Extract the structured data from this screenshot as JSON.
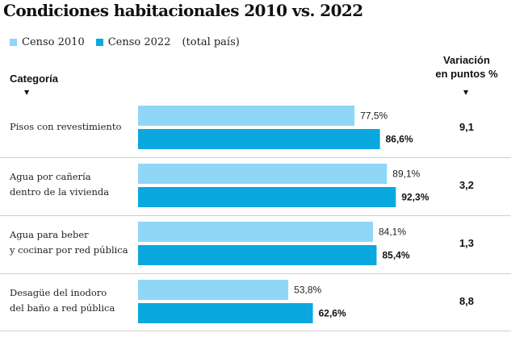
{
  "title": "Condiciones habitacionales 2010 vs. 2022",
  "legend": {
    "series_2010": "Censo 2010",
    "series_2022": "Censo 2022",
    "note": "(total país)"
  },
  "headers": {
    "category": "Categoría",
    "variation_line1": "Variación",
    "variation_line2": "en puntos %",
    "arrow": "▼"
  },
  "colors": {
    "censo_2010": "#8fd6f7",
    "censo_2022": "#0aa8df",
    "separator": "#cfcfcf"
  },
  "chart_data": {
    "type": "bar",
    "orientation": "horizontal",
    "title": "Condiciones habitacionales 2010 vs. 2022",
    "categories": [
      "Pisos con revestimiento",
      "Agua por cañería\ndentro de la vivienda",
      "Agua para beber\ny cocinar por red pública",
      "Desagüe del inodoro\ndel baño a red pública"
    ],
    "series": [
      {
        "name": "Censo 2010",
        "values": [
          77.5,
          89.1,
          84.1,
          53.8
        ],
        "labels": [
          "77,5%",
          "89,1%",
          "84,1%",
          "53,8%"
        ]
      },
      {
        "name": "Censo 2022",
        "values": [
          86.6,
          92.3,
          85.4,
          62.6
        ],
        "labels": [
          "86,6%",
          "92,3%",
          "85,4%",
          "62,6%"
        ]
      }
    ],
    "variation": [
      "9,1",
      "3,2",
      "1,3",
      "8,8"
    ],
    "xlim": [
      0,
      100
    ],
    "xlabel": "",
    "ylabel": "Categoría"
  }
}
